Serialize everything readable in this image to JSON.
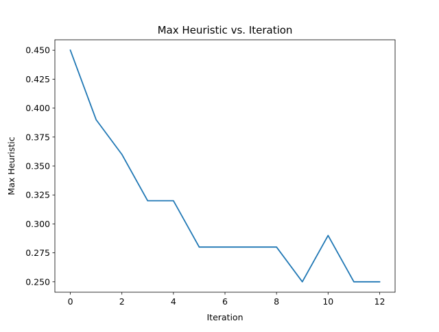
{
  "chart_data": {
    "type": "line",
    "title": "Max Heuristic vs. Iteration",
    "xlabel": "Iteration",
    "ylabel": "Max Heuristic",
    "xlim": [
      -0.6,
      12.6
    ],
    "ylim": [
      0.241,
      0.459
    ],
    "xticks": [
      0,
      2,
      4,
      6,
      8,
      10,
      12
    ],
    "xtick_labels": [
      "0",
      "2",
      "4",
      "6",
      "8",
      "10",
      "12"
    ],
    "yticks": [
      0.25,
      0.275,
      0.3,
      0.325,
      0.35,
      0.375,
      0.4,
      0.425,
      0.45
    ],
    "ytick_labels": [
      "0.250",
      "0.275",
      "0.300",
      "0.325",
      "0.350",
      "0.375",
      "0.400",
      "0.425",
      "0.450"
    ],
    "grid": false,
    "legend": "none",
    "series": [
      {
        "color": "#1f77b4",
        "x": [
          0,
          1,
          2,
          3,
          4,
          5,
          6,
          7,
          8,
          9,
          10,
          11,
          12
        ],
        "y": [
          0.45,
          0.39,
          0.36,
          0.32,
          0.32,
          0.28,
          0.28,
          0.28,
          0.28,
          0.25,
          0.29,
          0.25,
          0.25
        ]
      }
    ]
  }
}
